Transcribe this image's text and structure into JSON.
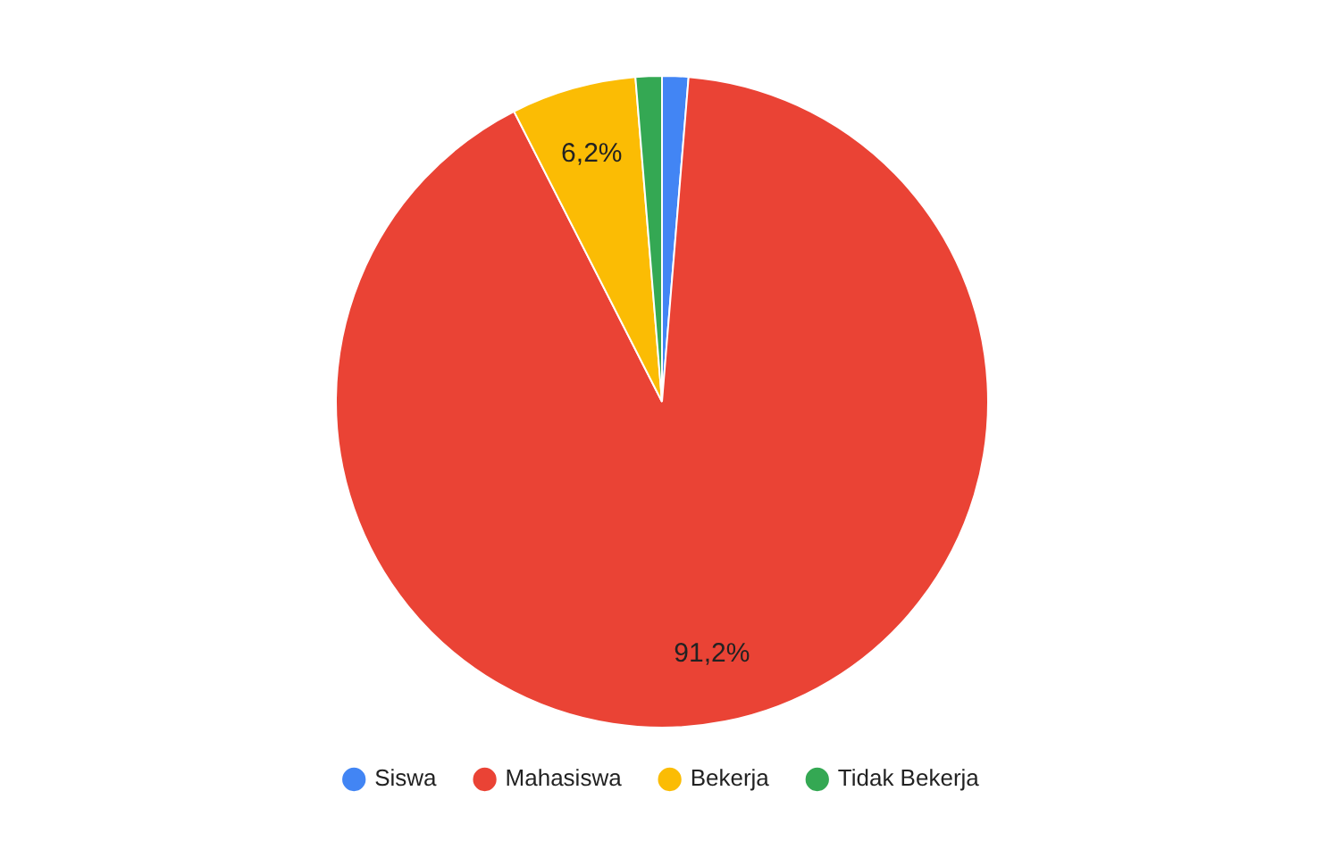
{
  "chart_data": {
    "type": "pie",
    "categories": [
      "Siswa",
      "Mahasiswa",
      "Bekerja",
      "Tidak Bekerja"
    ],
    "values": [
      1.3,
      91.2,
      6.2,
      1.3
    ],
    "colors": [
      "#4285f4",
      "#ea4335",
      "#fbbc04",
      "#34a853"
    ],
    "value_labels": [
      null,
      "91,2%",
      "6,2%",
      null
    ],
    "legend": "bottom"
  }
}
